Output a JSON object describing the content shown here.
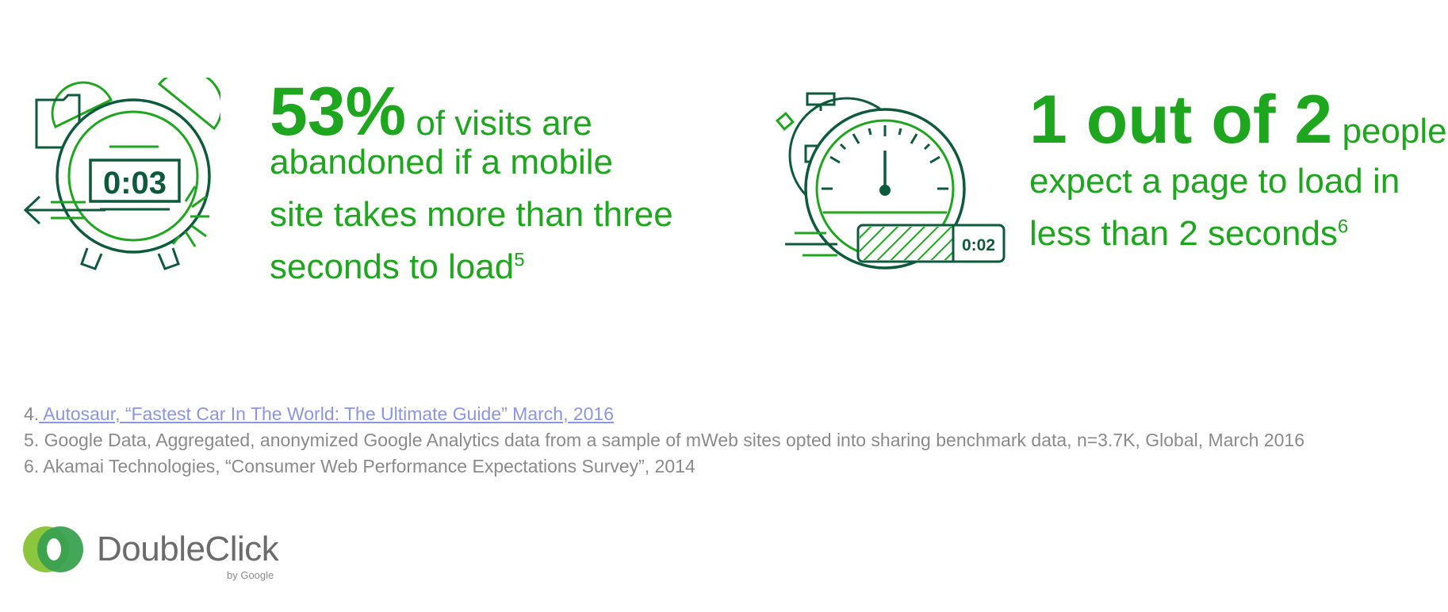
{
  "stat1": {
    "big": "53%",
    "line1": " of visits are",
    "line2": "abandoned if a mobile",
    "line3": "site takes more than three",
    "line4": "seconds to load",
    "sup": "5",
    "timer": "0:03"
  },
  "stat2": {
    "big": "1 out of 2",
    "line1": " people",
    "line2": "expect a page to load in",
    "line3": "less than 2 seconds",
    "sup": "6",
    "timer": "0:02"
  },
  "footnotes": {
    "f4_num": "4.",
    "f4_text": " Autosaur, “Fastest Car In The World: The Ultimate Guide” March, 2016",
    "f5": "5. Google Data, Aggregated, anonymized Google Analytics data from a sample of mWeb sites opted into sharing benchmark data, n=3.7K, Global, March 2016",
    "f6": "6. Akamai Technologies, “Consumer Web Performance Expectations Survey”, 2014"
  },
  "logo": {
    "name": "DoubleClick",
    "by": "by Google"
  },
  "colors": {
    "green": "#1ea61e",
    "dark_green": "#0d5a3c",
    "footnote_gray": "#8a8a8a",
    "link": "#8b95e0"
  },
  "icons": [
    "alarm-clock-icon",
    "stopwatch-icon",
    "doubleclick-logo-icon"
  ]
}
